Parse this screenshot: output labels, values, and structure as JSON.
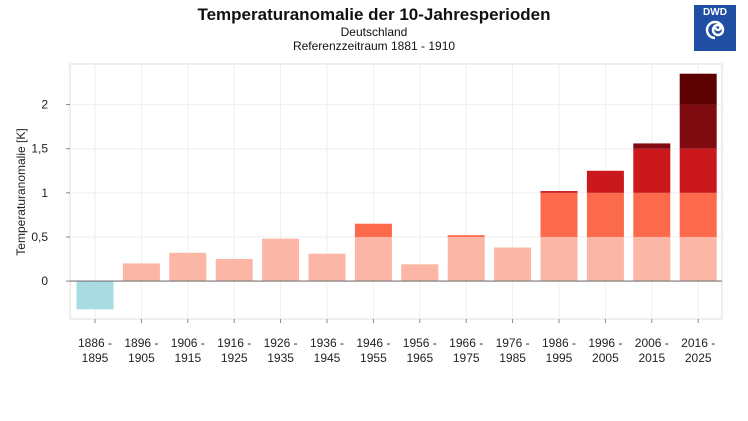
{
  "title": "Temperaturanomalie der 10-Jahresperioden",
  "subtitle1": "Deutschland",
  "subtitle2": "Referenzzeitraum 1881 - 1910",
  "logo_text": "DWD",
  "chart_data": {
    "type": "bar",
    "stacked_bands": [
      0,
      0.5,
      1,
      1.5,
      2,
      2.5
    ],
    "band_colors": [
      "#fbb6a6",
      "#fb6a4a",
      "#cb181d",
      "#7f0a10",
      "#5c0000"
    ],
    "negative_color": "#a9dbe3",
    "categories": [
      [
        "1886 -",
        "1895"
      ],
      [
        "1896 -",
        "1905"
      ],
      [
        "1906 -",
        "1915"
      ],
      [
        "1916 -",
        "1925"
      ],
      [
        "1926 -",
        "1935"
      ],
      [
        "1936 -",
        "1945"
      ],
      [
        "1946 -",
        "1955"
      ],
      [
        "1956 -",
        "1965"
      ],
      [
        "1966 -",
        "1975"
      ],
      [
        "1976 -",
        "1985"
      ],
      [
        "1986 -",
        "1995"
      ],
      [
        "1996 -",
        "2005"
      ],
      [
        "2006 -",
        "2015"
      ],
      [
        "2016 -",
        "2025"
      ]
    ],
    "values": [
      -0.32,
      0.2,
      0.32,
      0.25,
      0.48,
      0.31,
      0.65,
      0.19,
      0.52,
      0.38,
      1.02,
      1.25,
      1.56,
      2.35
    ],
    "ylabel": "Temperaturanomalie [K]",
    "yticks": [
      0,
      0.5,
      1,
      1.5,
      2
    ],
    "ytick_labels": [
      "0",
      "0,5",
      "1",
      "1,5",
      "2"
    ],
    "ylim": [
      -0.43,
      2.46
    ],
    "grid": true
  }
}
